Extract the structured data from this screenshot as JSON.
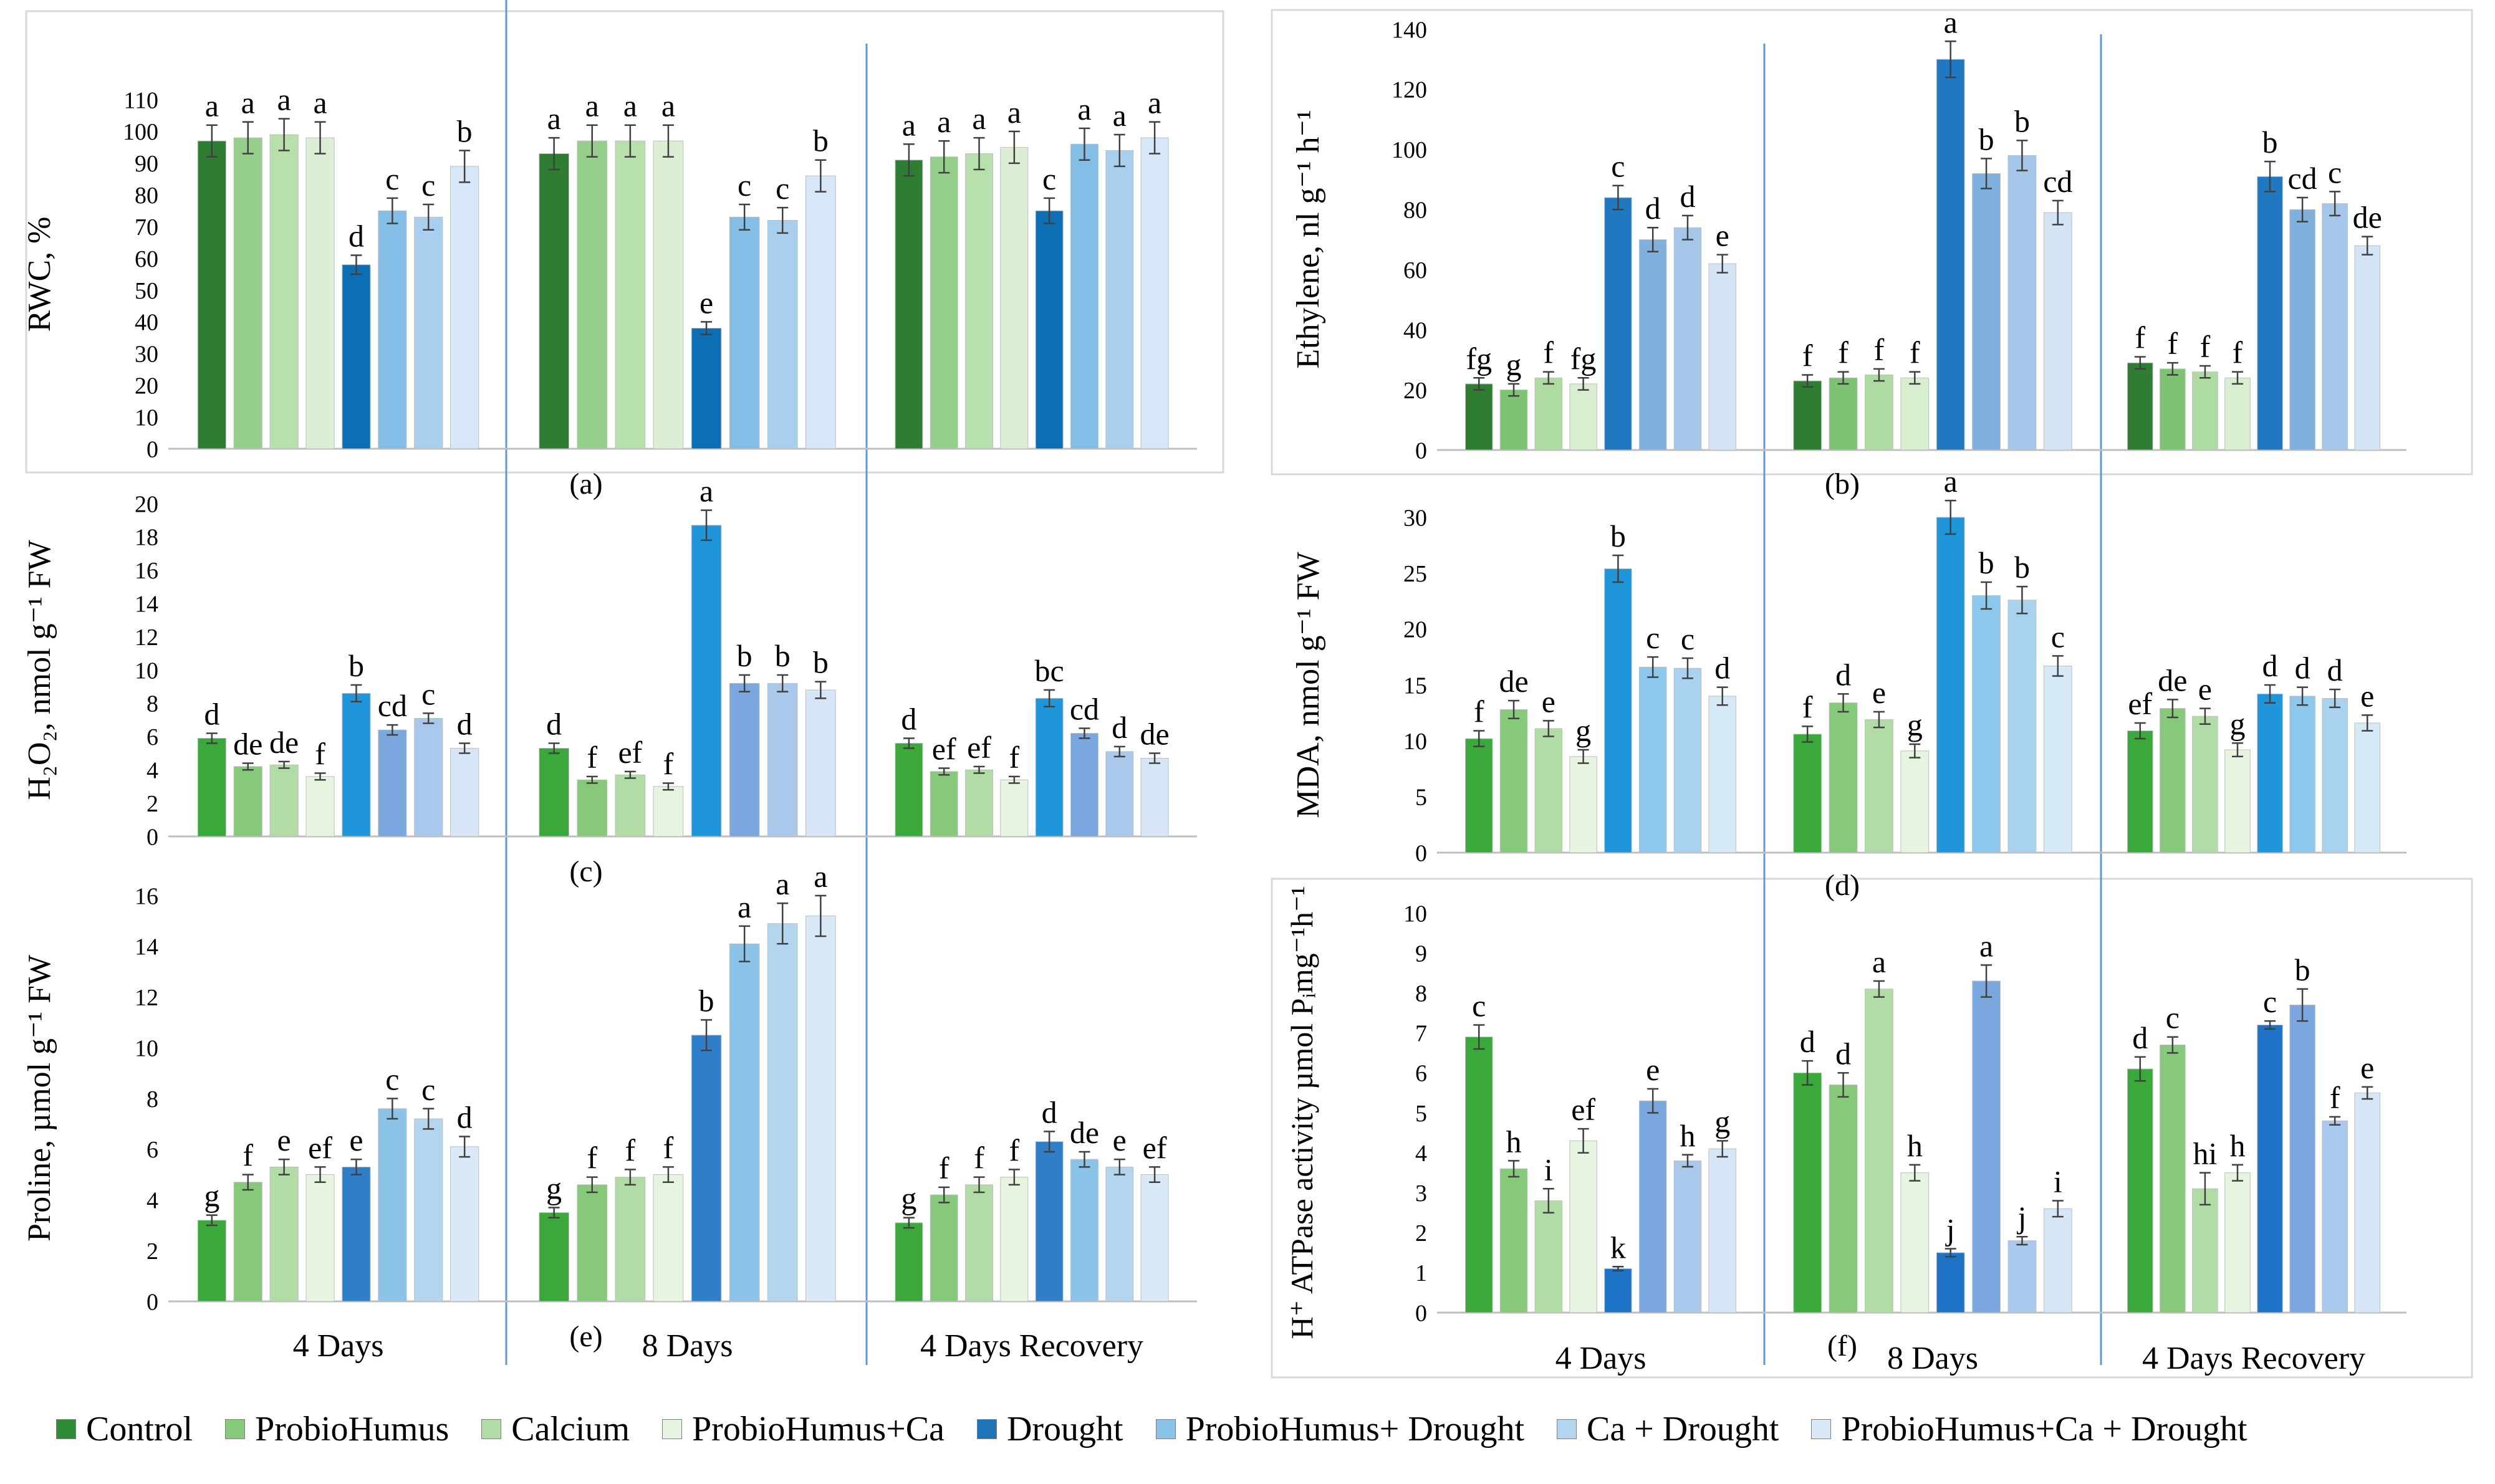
{
  "legend": [
    {
      "label": "Control",
      "color": "#2e8b36"
    },
    {
      "label": "ProbioHumus",
      "color": "#86c97a"
    },
    {
      "label": "Calcium",
      "color": "#b2dca6"
    },
    {
      "label": "ProbioHumus+Ca",
      "color": "#e6f4e0"
    },
    {
      "label": "Drought",
      "color": "#1f73b7"
    },
    {
      "label": "ProbioHumus+ Drought",
      "color": "#8cc3e8"
    },
    {
      "label": "Ca + Drought",
      "color": "#b4d5ee"
    },
    {
      "label": "ProbioHumus+Ca + Drought",
      "color": "#dae9f7"
    }
  ],
  "chart_data": [
    {
      "id": "a",
      "panel_label": "(a)",
      "type": "bar",
      "ylabel": "RWC, %",
      "ylim": [
        0,
        110
      ],
      "yticks": [
        0,
        10,
        20,
        30,
        40,
        50,
        60,
        70,
        80,
        90,
        100,
        110
      ],
      "palette": [
        "#2e7d32",
        "#96cf8c",
        "#b8e0ac",
        "#dcefd4",
        "#0d6eb4",
        "#84bde6",
        "#a9cfee",
        "#d6e7f7"
      ],
      "categories": [
        "4 Days",
        "8 Days",
        "4 Days Recovery"
      ],
      "series": [
        {
          "name": "Control",
          "values": [
            97,
            93,
            91
          ],
          "errors": [
            5,
            5,
            5
          ],
          "letters": [
            "a",
            "a",
            "a"
          ]
        },
        {
          "name": "ProbioHumus",
          "values": [
            98,
            97,
            92
          ],
          "errors": [
            5,
            5,
            5
          ],
          "letters": [
            "a",
            "a",
            "a"
          ]
        },
        {
          "name": "Calcium",
          "values": [
            99,
            97,
            93
          ],
          "errors": [
            5,
            5,
            5
          ],
          "letters": [
            "a",
            "a",
            "a"
          ]
        },
        {
          "name": "ProbioHumus+Ca",
          "values": [
            98,
            97,
            95
          ],
          "errors": [
            5,
            5,
            5
          ],
          "letters": [
            "a",
            "a",
            "a"
          ]
        },
        {
          "name": "Drought",
          "values": [
            58,
            38,
            75
          ],
          "errors": [
            3,
            2,
            4
          ],
          "letters": [
            "d",
            "e",
            "c"
          ]
        },
        {
          "name": "ProbioHumus+ Drought",
          "values": [
            75,
            73,
            96
          ],
          "errors": [
            4,
            4,
            5
          ],
          "letters": [
            "c",
            "c",
            "a"
          ]
        },
        {
          "name": "Ca + Drought",
          "values": [
            73,
            72,
            94
          ],
          "errors": [
            4,
            4,
            5
          ],
          "letters": [
            "c",
            "c",
            "a"
          ]
        },
        {
          "name": "ProbioHumus+Ca + Drought",
          "values": [
            89,
            86,
            98
          ],
          "errors": [
            5,
            5,
            5
          ],
          "letters": [
            "b",
            "b",
            "a"
          ]
        }
      ]
    },
    {
      "id": "b",
      "panel_label": "(b)",
      "type": "bar",
      "ylabel": "Ethylene, nl g⁻¹ h⁻¹",
      "ylim": [
        0,
        140
      ],
      "yticks": [
        0,
        20,
        40,
        60,
        80,
        100,
        120,
        140
      ],
      "palette": [
        "#2e7d32",
        "#7cc472",
        "#aedba2",
        "#d8eed0",
        "#1f78c0",
        "#7fb0de",
        "#a4c6e8",
        "#d3e4f5"
      ],
      "categories": [
        "4 Days",
        "8 Days",
        "4 Days Recovery"
      ],
      "series": [
        {
          "name": "Control",
          "values": [
            22,
            23,
            29
          ],
          "errors": [
            2,
            2,
            2
          ],
          "letters": [
            "fg",
            "f",
            "f"
          ]
        },
        {
          "name": "ProbioHumus",
          "values": [
            20,
            24,
            27
          ],
          "errors": [
            2,
            2,
            2
          ],
          "letters": [
            "g",
            "f",
            "f"
          ]
        },
        {
          "name": "Calcium",
          "values": [
            24,
            25,
            26
          ],
          "errors": [
            2,
            2,
            2
          ],
          "letters": [
            "f",
            "f",
            "f"
          ]
        },
        {
          "name": "ProbioHumus+Ca",
          "values": [
            22,
            24,
            24
          ],
          "errors": [
            2,
            2,
            2
          ],
          "letters": [
            "fg",
            "f",
            "f"
          ]
        },
        {
          "name": "Drought",
          "values": [
            84,
            130,
            91
          ],
          "errors": [
            4,
            6,
            5
          ],
          "letters": [
            "c",
            "a",
            "b"
          ]
        },
        {
          "name": "ProbioHumus+ Drought",
          "values": [
            70,
            92,
            80
          ],
          "errors": [
            4,
            5,
            4
          ],
          "letters": [
            "d",
            "b",
            "cd"
          ]
        },
        {
          "name": "Ca + Drought",
          "values": [
            74,
            98,
            82
          ],
          "errors": [
            4,
            5,
            4
          ],
          "letters": [
            "d",
            "b",
            "c"
          ]
        },
        {
          "name": "ProbioHumus+Ca + Drought",
          "values": [
            62,
            79,
            68
          ],
          "errors": [
            3,
            4,
            3
          ],
          "letters": [
            "e",
            "cd",
            "de"
          ]
        }
      ]
    },
    {
      "id": "c",
      "panel_label": "(c)",
      "type": "bar",
      "ylabel": "H₂O₂, nmol g⁻¹ FW",
      "ylim": [
        0,
        20
      ],
      "yticks": [
        0,
        2,
        4,
        6,
        8,
        10,
        12,
        14,
        16,
        18,
        20
      ],
      "palette": [
        "#3aa83a",
        "#86c97a",
        "#b2dca6",
        "#e6f4e0",
        "#1e96d9",
        "#7aa8de",
        "#a9c8eb",
        "#d6e6f6"
      ],
      "categories": [
        "4 Days",
        "8 Days",
        "4 Days Recovery"
      ],
      "series": [
        {
          "name": "Control",
          "values": [
            5.9,
            5.3,
            5.6
          ],
          "errors": [
            0.3,
            0.3,
            0.3
          ],
          "letters": [
            "d",
            "d",
            "d"
          ]
        },
        {
          "name": "ProbioHumus",
          "values": [
            4.2,
            3.4,
            3.9
          ],
          "errors": [
            0.2,
            0.2,
            0.2
          ],
          "letters": [
            "de",
            "f",
            "ef"
          ]
        },
        {
          "name": "Calcium",
          "values": [
            4.3,
            3.7,
            4.0
          ],
          "errors": [
            0.2,
            0.2,
            0.2
          ],
          "letters": [
            "de",
            "ef",
            "ef"
          ]
        },
        {
          "name": "ProbioHumus+Ca",
          "values": [
            3.6,
            3.0,
            3.4
          ],
          "errors": [
            0.2,
            0.2,
            0.2
          ],
          "letters": [
            "f",
            "f",
            "f"
          ]
        },
        {
          "name": "Drought",
          "values": [
            8.6,
            18.7,
            8.3
          ],
          "errors": [
            0.5,
            0.9,
            0.5
          ],
          "letters": [
            "b",
            "a",
            "bc"
          ]
        },
        {
          "name": "ProbioHumus+ Drought",
          "values": [
            6.4,
            9.2,
            6.2
          ],
          "errors": [
            0.3,
            0.5,
            0.3
          ],
          "letters": [
            "cd",
            "b",
            "cd"
          ]
        },
        {
          "name": "Ca + Drought",
          "values": [
            7.1,
            9.2,
            5.1
          ],
          "errors": [
            0.3,
            0.5,
            0.3
          ],
          "letters": [
            "c",
            "b",
            "d"
          ]
        },
        {
          "name": "ProbioHumus+Ca + Drought",
          "values": [
            5.3,
            8.8,
            4.7
          ],
          "errors": [
            0.3,
            0.5,
            0.3
          ],
          "letters": [
            "d",
            "b",
            "de"
          ]
        }
      ]
    },
    {
      "id": "d",
      "panel_label": "(d)",
      "type": "bar",
      "ylabel": "MDA, nmol g⁻¹ FW",
      "ylim": [
        0,
        30
      ],
      "yticks": [
        0,
        5,
        10,
        15,
        20,
        25,
        30
      ],
      "palette": [
        "#3aa83a",
        "#86c97a",
        "#b2dca6",
        "#e6f4e0",
        "#1e96d9",
        "#8cc8ec",
        "#a9d2ef",
        "#d6e9f6"
      ],
      "categories": [
        "4 Days",
        "8 Days",
        "4 Days Recovery"
      ],
      "series": [
        {
          "name": "Control",
          "values": [
            10.2,
            10.6,
            10.9
          ],
          "errors": [
            0.7,
            0.7,
            0.7
          ],
          "letters": [
            "f",
            "f",
            "ef"
          ]
        },
        {
          "name": "ProbioHumus",
          "values": [
            12.8,
            13.4,
            12.9
          ],
          "errors": [
            0.8,
            0.8,
            0.8
          ],
          "letters": [
            "de",
            "d",
            "de"
          ]
        },
        {
          "name": "Calcium",
          "values": [
            11.1,
            11.9,
            12.2
          ],
          "errors": [
            0.7,
            0.7,
            0.7
          ],
          "letters": [
            "e",
            "e",
            "e"
          ]
        },
        {
          "name": "ProbioHumus+Ca",
          "values": [
            8.6,
            9.1,
            9.2
          ],
          "errors": [
            0.6,
            0.6,
            0.6
          ],
          "letters": [
            "g",
            "g",
            "g"
          ]
        },
        {
          "name": "Drought",
          "values": [
            25.4,
            30.0,
            14.2
          ],
          "errors": [
            1.2,
            1.5,
            0.8
          ],
          "letters": [
            "b",
            "a",
            "d"
          ]
        },
        {
          "name": "ProbioHumus+ Drought",
          "values": [
            16.6,
            23.0,
            14.0
          ],
          "errors": [
            0.9,
            1.2,
            0.8
          ],
          "letters": [
            "c",
            "b",
            "d"
          ]
        },
        {
          "name": "Ca + Drought",
          "values": [
            16.5,
            22.6,
            13.8
          ],
          "errors": [
            0.9,
            1.2,
            0.8
          ],
          "letters": [
            "c",
            "b",
            "d"
          ]
        },
        {
          "name": "ProbioHumus+Ca + Drought",
          "values": [
            14.0,
            16.7,
            11.6
          ],
          "errors": [
            0.8,
            0.9,
            0.7
          ],
          "letters": [
            "d",
            "c",
            "e"
          ]
        }
      ]
    },
    {
      "id": "e",
      "panel_label": "(e)",
      "type": "bar",
      "ylabel": "Proline, µmol g⁻¹ FW",
      "ylim": [
        0,
        16
      ],
      "yticks": [
        0,
        2,
        4,
        6,
        8,
        10,
        12,
        14,
        16
      ],
      "palette": [
        "#3aa83a",
        "#86c97a",
        "#b2dca6",
        "#e6f4e0",
        "#2f7fc8",
        "#8cc3e8",
        "#b4d5ee",
        "#dae9f7"
      ],
      "categories": [
        "4 Days",
        "8 Days",
        "4 Days Recovery"
      ],
      "series": [
        {
          "name": "Control",
          "values": [
            3.2,
            3.5,
            3.1
          ],
          "errors": [
            0.2,
            0.2,
            0.2
          ],
          "letters": [
            "g",
            "g",
            "g"
          ]
        },
        {
          "name": "ProbioHumus",
          "values": [
            4.7,
            4.6,
            4.2
          ],
          "errors": [
            0.3,
            0.3,
            0.3
          ],
          "letters": [
            "f",
            "f",
            "f"
          ]
        },
        {
          "name": "Calcium",
          "values": [
            5.3,
            4.9,
            4.6
          ],
          "errors": [
            0.3,
            0.3,
            0.3
          ],
          "letters": [
            "e",
            "f",
            "f"
          ]
        },
        {
          "name": "ProbioHumus+Ca",
          "values": [
            5.0,
            5.0,
            4.9
          ],
          "errors": [
            0.3,
            0.3,
            0.3
          ],
          "letters": [
            "ef",
            "f",
            "f"
          ]
        },
        {
          "name": "Drought",
          "values": [
            5.3,
            10.5,
            6.3
          ],
          "errors": [
            0.3,
            0.6,
            0.4
          ],
          "letters": [
            "e",
            "b",
            "d"
          ]
        },
        {
          "name": "ProbioHumus+ Drought",
          "values": [
            7.6,
            14.1,
            5.6
          ],
          "errors": [
            0.4,
            0.7,
            0.3
          ],
          "letters": [
            "c",
            "a",
            "de"
          ]
        },
        {
          "name": "Ca + Drought",
          "values": [
            7.2,
            14.9,
            5.3
          ],
          "errors": [
            0.4,
            0.8,
            0.3
          ],
          "letters": [
            "c",
            "a",
            "e"
          ]
        },
        {
          "name": "ProbioHumus+Ca + Drought",
          "values": [
            6.1,
            15.2,
            5.0
          ],
          "errors": [
            0.4,
            0.8,
            0.3
          ],
          "letters": [
            "d",
            "a",
            "ef"
          ]
        }
      ]
    },
    {
      "id": "f",
      "panel_label": "(f)",
      "type": "bar",
      "ylabel": "H⁺ ATPase activity  µmol Pᵢmg⁻¹h⁻¹",
      "ylim": [
        0,
        10
      ],
      "yticks": [
        0,
        1,
        2,
        3,
        4,
        5,
        6,
        7,
        8,
        9,
        10
      ],
      "palette": [
        "#3aa83a",
        "#86c97a",
        "#b2dca6",
        "#e6f4e0",
        "#1f73c7",
        "#7aa8de",
        "#a9c8eb",
        "#d6e6f6"
      ],
      "categories": [
        "4 Days",
        "8 Days",
        "4 Days Recovery"
      ],
      "series": [
        {
          "name": "Control",
          "values": [
            6.9,
            6.0,
            6.1
          ],
          "errors": [
            0.3,
            0.3,
            0.3
          ],
          "letters": [
            "c",
            "d",
            "d"
          ]
        },
        {
          "name": "ProbioHumus",
          "values": [
            3.6,
            5.7,
            6.7
          ],
          "errors": [
            0.2,
            0.3,
            0.2
          ],
          "letters": [
            "h",
            "d",
            "c"
          ]
        },
        {
          "name": "Calcium",
          "values": [
            2.8,
            8.1,
            3.1
          ],
          "errors": [
            0.3,
            0.2,
            0.4
          ],
          "letters": [
            "i",
            "a",
            "hi"
          ]
        },
        {
          "name": "ProbioHumus+Ca",
          "values": [
            4.3,
            3.5,
            3.5
          ],
          "errors": [
            0.3,
            0.2,
            0.2
          ],
          "letters": [
            "ef",
            "h",
            "h"
          ]
        },
        {
          "name": "Drought",
          "values": [
            1.1,
            1.5,
            7.2
          ],
          "errors": [
            0.05,
            0.1,
            0.1
          ],
          "letters": [
            "k",
            "j",
            "c"
          ]
        },
        {
          "name": "ProbioHumus+ Drought",
          "values": [
            5.3,
            8.3,
            7.7
          ],
          "errors": [
            0.3,
            0.4,
            0.4
          ],
          "letters": [
            "e",
            "a",
            "b"
          ]
        },
        {
          "name": "Ca + Drought",
          "values": [
            3.8,
            1.8,
            4.8
          ],
          "errors": [
            0.15,
            0.1,
            0.1
          ],
          "letters": [
            "h",
            "j",
            "f"
          ]
        },
        {
          "name": "ProbioHumus+Ca + Drought",
          "values": [
            4.1,
            2.6,
            5.5
          ],
          "errors": [
            0.2,
            0.2,
            0.15
          ],
          "letters": [
            "g",
            "i",
            "e"
          ]
        }
      ]
    }
  ]
}
